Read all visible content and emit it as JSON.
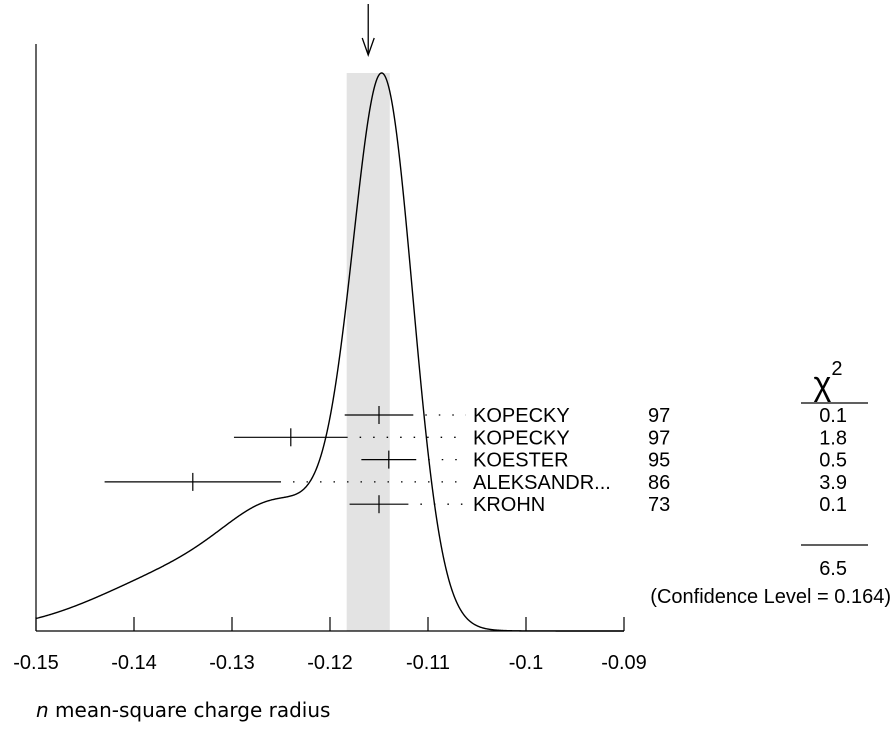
{
  "chart_data": {
    "type": "ideogram",
    "xlabel_var": "n",
    "xlabel_rest": " mean-square charge radius",
    "xlim": [
      -0.15,
      -0.09
    ],
    "xticks": [
      -0.15,
      -0.14,
      -0.13,
      -0.12,
      -0.11,
      -0.1,
      -0.09
    ],
    "average": {
      "value": -0.1161,
      "error": 0.0022
    },
    "chi2_symbol": "χ",
    "chi2_exponent": "2",
    "measurements": [
      {
        "name": "KOPECKY",
        "year": "97",
        "value": -0.115,
        "err": 0.0035,
        "chi2": "0.1"
      },
      {
        "name": "KOPECKY",
        "year": "97",
        "value": -0.124,
        "err": 0.0058,
        "chi2": "1.8"
      },
      {
        "name": "KOESTER",
        "year": "95",
        "value": -0.114,
        "err": 0.0028,
        "chi2": "0.5"
      },
      {
        "name": "ALEKSANDR...",
        "year": "86",
        "value": -0.134,
        "err": 0.009,
        "chi2": "3.9"
      },
      {
        "name": "KROHN",
        "year": "73",
        "value": -0.115,
        "err": 0.003,
        "chi2": "0.1"
      }
    ],
    "chi2_total": "6.5",
    "confidence_text": "(Confidence Level = 0.164)"
  }
}
